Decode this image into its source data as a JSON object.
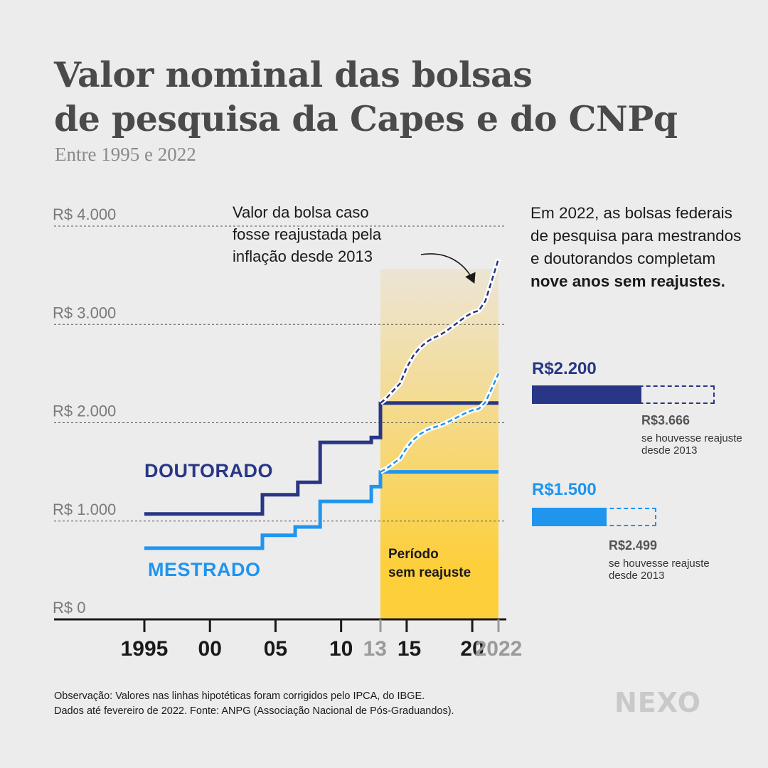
{
  "title_line1": "Valor nominal das bolsas",
  "title_line2": "de pesquisa da Capes e do CNPq",
  "subtitle": "Entre 1995 e 2022",
  "annotation_lines": [
    "Valor da bolsa caso",
    "fosse reajustada pela",
    "inflação desde 2013"
  ],
  "period_lines": [
    "Período",
    "sem reajuste"
  ],
  "side": {
    "text_part1": "Em 2022, as bolsas federais de pesquisa para mestrandos e doutorandos completam ",
    "text_bold": "nove anos sem reajustes."
  },
  "doutorado_bar": {
    "label": "R$2.200",
    "hyp_value": "R$3.666",
    "note": "se houvesse reajuste desde 2013"
  },
  "mestrado_bar": {
    "label": "R$1.500",
    "hyp_value": "R$2.499",
    "note": "se houvesse reajuste desde 2013"
  },
  "footer_line1": "Observação: Valores nas linhas hipotéticas foram corrigidos pelo IPCA, do IBGE.",
  "footer_line2": "Dados até fevereiro de 2022. Fonte: ANPG (Associação Nacional de Pós-Graduandos).",
  "logo": "NEXO",
  "colors": {
    "doutorado": "#283685",
    "mestrado": "#1f95ee",
    "period_top": "#ece5d6",
    "period_bottom": "#fdcf3b"
  },
  "chart_data": {
    "type": "line",
    "x_range": [
      1995,
      2022
    ],
    "ylim": [
      0,
      4000
    ],
    "y_ticks": [
      {
        "value": 0,
        "label": "R$ 0"
      },
      {
        "value": 1000,
        "label": "R$ 1.000"
      },
      {
        "value": 2000,
        "label": "R$ 2.000"
      },
      {
        "value": 3000,
        "label": "R$ 3.000"
      },
      {
        "value": 4000,
        "label": "R$ 4.000"
      }
    ],
    "x_ticks": [
      {
        "value": 1995,
        "label": "1995",
        "muted": false
      },
      {
        "value": 2000,
        "label": "00",
        "muted": false
      },
      {
        "value": 2005,
        "label": "05",
        "muted": false
      },
      {
        "value": 2010,
        "label": "10",
        "muted": false
      },
      {
        "value": 2013,
        "label": "13",
        "muted": true
      },
      {
        "value": 2015,
        "label": "15",
        "muted": false
      },
      {
        "value": 2020,
        "label": "20",
        "muted": false
      },
      {
        "value": 2022,
        "label": "2022",
        "muted": true
      }
    ],
    "highlight_period": [
      2013,
      2022
    ],
    "series": [
      {
        "name": "DOUTORADO",
        "style": "step",
        "points": [
          [
            1995,
            1072
          ],
          [
            2004,
            1072
          ],
          [
            2004,
            1267
          ],
          [
            2006.7,
            1267
          ],
          [
            2006.7,
            1394
          ],
          [
            2008.4,
            1394
          ],
          [
            2008.4,
            1800
          ],
          [
            2012.3,
            1800
          ],
          [
            2012.3,
            1850
          ],
          [
            2013,
            1850
          ],
          [
            2013,
            2200
          ],
          [
            2022,
            2200
          ]
        ]
      },
      {
        "name": "MESTRADO",
        "style": "step",
        "points": [
          [
            1995,
            724
          ],
          [
            2004,
            724
          ],
          [
            2004,
            855
          ],
          [
            2006.5,
            855
          ],
          [
            2006.5,
            940
          ],
          [
            2008.4,
            940
          ],
          [
            2008.4,
            1200
          ],
          [
            2012.3,
            1200
          ],
          [
            2012.3,
            1350
          ],
          [
            2013,
            1350
          ],
          [
            2013,
            1500
          ],
          [
            2022,
            1500
          ]
        ]
      },
      {
        "name": "DOUTORADO hipotético",
        "style": "dashed",
        "points": [
          [
            2013,
            2200
          ],
          [
            2013.5,
            2255
          ],
          [
            2014,
            2330
          ],
          [
            2014.5,
            2400
          ],
          [
            2015,
            2560
          ],
          [
            2015.5,
            2680
          ],
          [
            2016,
            2760
          ],
          [
            2016.5,
            2820
          ],
          [
            2017,
            2860
          ],
          [
            2017.5,
            2890
          ],
          [
            2018,
            2930
          ],
          [
            2018.5,
            2980
          ],
          [
            2019,
            3030
          ],
          [
            2019.5,
            3080
          ],
          [
            2020,
            3120
          ],
          [
            2020.5,
            3140
          ],
          [
            2021,
            3240
          ],
          [
            2021.5,
            3450
          ],
          [
            2022,
            3666
          ]
        ]
      },
      {
        "name": "MESTRADO hipotético",
        "style": "dashed",
        "points": [
          [
            2013,
            1500
          ],
          [
            2013.5,
            1537
          ],
          [
            2014,
            1588
          ],
          [
            2014.5,
            1636
          ],
          [
            2015,
            1745
          ],
          [
            2015.5,
            1827
          ],
          [
            2016,
            1882
          ],
          [
            2016.5,
            1923
          ],
          [
            2017,
            1950
          ],
          [
            2017.5,
            1970
          ],
          [
            2018,
            1998
          ],
          [
            2018.5,
            2032
          ],
          [
            2019,
            2066
          ],
          [
            2019.5,
            2100
          ],
          [
            2020,
            2127
          ],
          [
            2020.5,
            2141
          ],
          [
            2021,
            2209
          ],
          [
            2021.5,
            2352
          ],
          [
            2022,
            2499
          ]
        ]
      }
    ]
  }
}
